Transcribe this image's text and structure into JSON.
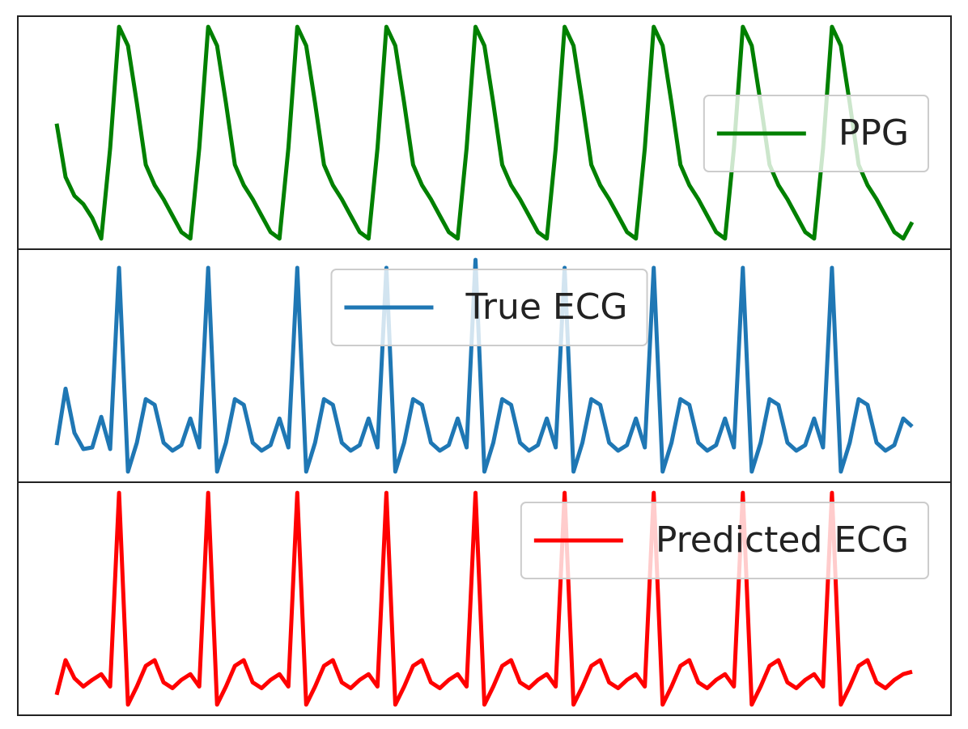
{
  "chart_data": [
    {
      "type": "line",
      "legend": "upper right",
      "series": [
        {
          "name": "PPG",
          "color": "#008000",
          "values": [
            150,
            85,
            62,
            52,
            35,
            10,
            120,
            268,
            245,
            175,
            100,
            75,
            58,
            38,
            18,
            10,
            120,
            268,
            245,
            175,
            100,
            75,
            58,
            38,
            18,
            10,
            120,
            268,
            245,
            175,
            100,
            75,
            58,
            38,
            18,
            10,
            120,
            268,
            245,
            175,
            100,
            75,
            58,
            38,
            18,
            10,
            120,
            268,
            245,
            175,
            100,
            75,
            58,
            38,
            18,
            10,
            120,
            268,
            245,
            175,
            100,
            75,
            58,
            38,
            18,
            10,
            120,
            268,
            245,
            175,
            100,
            75,
            58,
            38,
            18,
            10,
            120,
            268,
            245,
            175,
            100,
            75,
            58,
            38,
            18,
            10,
            120,
            268,
            245,
            175,
            100,
            75,
            58,
            38,
            18,
            10,
            30
          ]
        }
      ]
    },
    {
      "type": "line",
      "legend": "upper center",
      "series": [
        {
          "name": "True ECG",
          "color": "#1f77b4",
          "values": [
            55,
            125,
            70,
            50,
            52,
            90,
            50,
            275,
            22,
            58,
            112,
            105,
            58,
            48,
            55,
            88,
            52,
            275,
            22,
            58,
            112,
            105,
            58,
            48,
            55,
            88,
            52,
            275,
            22,
            58,
            112,
            105,
            58,
            48,
            55,
            88,
            52,
            275,
            22,
            58,
            112,
            105,
            58,
            48,
            55,
            88,
            52,
            285,
            22,
            58,
            112,
            105,
            58,
            48,
            55,
            88,
            52,
            275,
            22,
            58,
            112,
            105,
            58,
            48,
            55,
            88,
            52,
            275,
            22,
            58,
            112,
            105,
            58,
            48,
            55,
            88,
            52,
            275,
            22,
            58,
            112,
            105,
            58,
            48,
            55,
            88,
            52,
            275,
            22,
            58,
            112,
            105,
            58,
            48,
            55,
            88,
            78
          ]
        }
      ]
    },
    {
      "type": "line",
      "legend": "upper right",
      "series": [
        {
          "name": "Predicted ECG",
          "color": "#ff0000",
          "values": [
            40,
            82,
            60,
            50,
            58,
            65,
            50,
            285,
            28,
            50,
            75,
            82,
            55,
            48,
            58,
            65,
            50,
            285,
            28,
            50,
            75,
            82,
            55,
            48,
            58,
            65,
            50,
            285,
            28,
            50,
            75,
            82,
            55,
            48,
            58,
            65,
            50,
            285,
            28,
            50,
            75,
            82,
            55,
            48,
            58,
            65,
            50,
            285,
            28,
            50,
            75,
            82,
            55,
            48,
            58,
            65,
            50,
            285,
            28,
            50,
            75,
            82,
            55,
            48,
            58,
            65,
            50,
            285,
            28,
            50,
            75,
            82,
            55,
            48,
            58,
            65,
            50,
            285,
            28,
            50,
            75,
            82,
            55,
            48,
            58,
            65,
            50,
            285,
            28,
            50,
            75,
            82,
            55,
            48,
            58,
            65,
            68
          ]
        }
      ]
    }
  ]
}
